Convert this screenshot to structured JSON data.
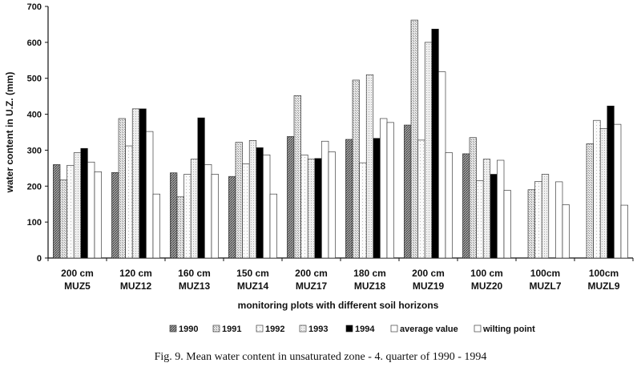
{
  "chart_data": {
    "type": "bar",
    "categories": [
      [
        "200 cm",
        "MUZ5"
      ],
      [
        "120 cm",
        "MUZ12"
      ],
      [
        "160 cm",
        "MUZ13"
      ],
      [
        "150 cm",
        "MUZ14"
      ],
      [
        "200 cm",
        "MUZ17"
      ],
      [
        "180 cm",
        "MUZ18"
      ],
      [
        "200 cm",
        "MUZ19"
      ],
      [
        "100 cm",
        "MUZ20"
      ],
      [
        "100cm",
        "MUZL7"
      ],
      [
        "100cm",
        "MUZL9"
      ]
    ],
    "series": [
      {
        "name": "1990",
        "values": [
          260,
          238,
          237,
          227,
          338,
          330,
          370,
          290,
          null,
          null
        ]
      },
      {
        "name": "1991",
        "values": [
          217,
          388,
          170,
          322,
          452,
          495,
          662,
          335,
          190,
          318
        ]
      },
      {
        "name": "1992",
        "values": [
          258,
          312,
          233,
          262,
          287,
          265,
          328,
          215,
          213,
          383
        ]
      },
      {
        "name": "1993",
        "values": [
          293,
          415,
          275,
          327,
          275,
          510,
          600,
          275,
          233,
          360
        ]
      },
      {
        "name": "1994",
        "values": [
          305,
          415,
          390,
          307,
          277,
          333,
          637,
          233,
          null,
          423
        ]
      },
      {
        "name": "average value",
        "values": [
          267,
          352,
          260,
          287,
          325,
          388,
          518,
          272,
          212,
          372
        ]
      },
      {
        "name": "wilting point",
        "values": [
          240,
          178,
          233,
          178,
          295,
          377,
          293,
          188,
          148,
          147
        ]
      }
    ],
    "colors": {
      "1990": "#8a8a8a",
      "1991": "#d2d2d2",
      "1992": "#f4f4f4",
      "1993": "#e3e3e3",
      "1994": "#000000",
      "average value": "#ffffff",
      "wilting point": "#ffffff"
    },
    "xlabel": "monitoring plots with different soil horizons",
    "ylabel": "water content in U.Z. (mm)",
    "ylim": [
      0,
      700
    ],
    "yticks": [
      0,
      100,
      200,
      300,
      400,
      500,
      600,
      700
    ],
    "grid": false,
    "legend_position": "bottom",
    "caption": "Fig. 9. Mean water content in unsaturated zone - 4. quarter of 1990 - 1994"
  }
}
